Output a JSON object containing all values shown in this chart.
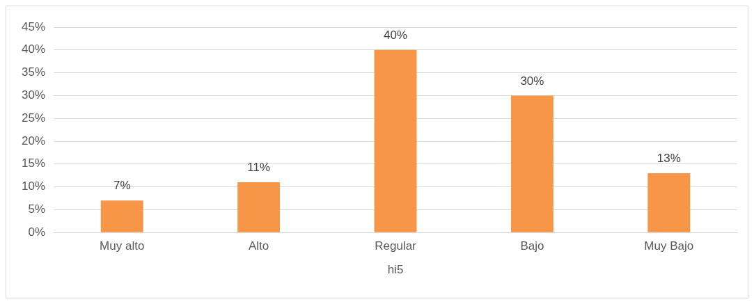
{
  "chart_data": {
    "type": "bar",
    "xlabel": "hi5",
    "categories": [
      "Muy alto",
      "Alto",
      "Regular",
      "Bajo",
      "Muy Bajo"
    ],
    "series": [
      {
        "color": "#f79646",
        "values": [
          7,
          11,
          40,
          30,
          13
        ],
        "value_labels": [
          "7%",
          "11%",
          "40%",
          "30%",
          "13%"
        ]
      }
    ],
    "ylim": [
      0,
      45
    ],
    "yticks": [
      {
        "value": 0,
        "label": "0%"
      },
      {
        "value": 5,
        "label": "5%"
      },
      {
        "value": 10,
        "label": "10%"
      },
      {
        "value": 15,
        "label": "15%"
      },
      {
        "value": 20,
        "label": "20%"
      },
      {
        "value": 25,
        "label": "25%"
      },
      {
        "value": 30,
        "label": "30%"
      },
      {
        "value": 35,
        "label": "35%"
      },
      {
        "value": 40,
        "label": "40%"
      },
      {
        "value": 45,
        "label": "45%"
      }
    ],
    "grid": "y",
    "legend": false
  }
}
